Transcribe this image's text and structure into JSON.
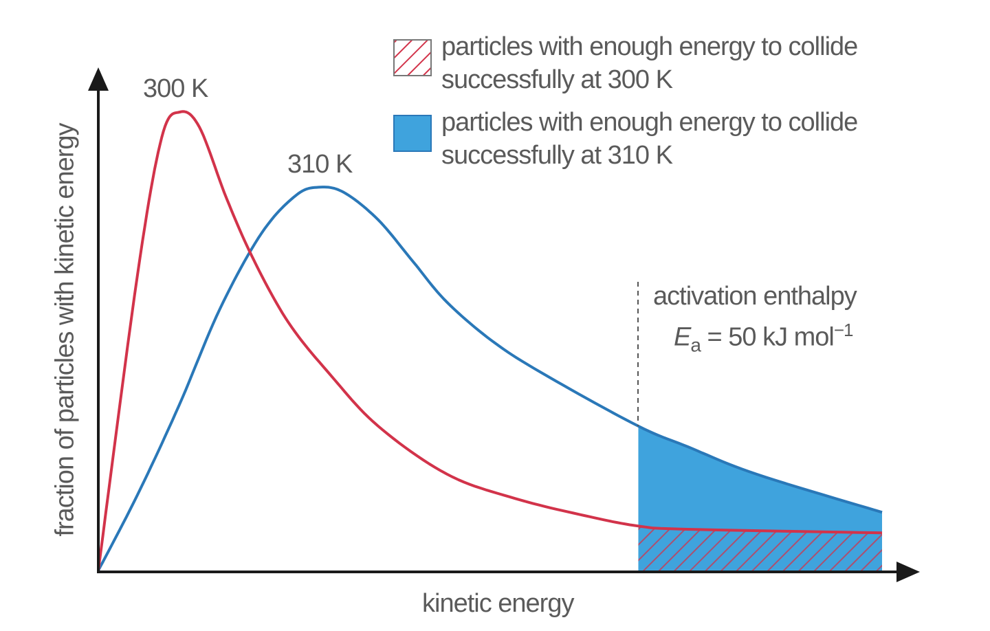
{
  "chart_data": {
    "type": "line",
    "title": "",
    "xlabel": "kinetic energy",
    "ylabel": "fraction of particles with kinetic energy",
    "xlim": [
      0,
      100
    ],
    "ylim": [
      0,
      100
    ],
    "grid": false,
    "ticks": "none",
    "legend_position": "top-right",
    "series": [
      {
        "name": "300 K",
        "color": "#d2334a",
        "points": [
          [
            0,
            0
          ],
          [
            5,
            64.5
          ],
          [
            8.1,
            94.5
          ],
          [
            10.4,
            100
          ],
          [
            12.9,
            96.7
          ],
          [
            16.4,
            81
          ],
          [
            19.9,
            67.5
          ],
          [
            24.3,
            54
          ],
          [
            29.6,
            42.7
          ],
          [
            35.7,
            31.5
          ],
          [
            44.5,
            21
          ],
          [
            53.2,
            15.7
          ],
          [
            62,
            12
          ],
          [
            68.9,
            9.7
          ],
          [
            75.2,
            9
          ],
          [
            100,
            8.2
          ]
        ]
      },
      {
        "name": "310 K",
        "color": "#2a78b8",
        "points": [
          [
            0,
            0
          ],
          [
            5,
            16.5
          ],
          [
            10.3,
            36
          ],
          [
            15.5,
            57
          ],
          [
            20.8,
            73.5
          ],
          [
            25.2,
            81.8
          ],
          [
            28.1,
            83.6
          ],
          [
            31.3,
            82.5
          ],
          [
            35.7,
            76.5
          ],
          [
            40.1,
            67.5
          ],
          [
            44.5,
            58.5
          ],
          [
            50.7,
            49.5
          ],
          [
            57.7,
            42
          ],
          [
            68.9,
            31.5
          ],
          [
            75.2,
            27
          ],
          [
            84,
            21
          ],
          [
            100,
            12.7
          ]
        ]
      }
    ],
    "activation": {
      "x": 68.9,
      "label_line1": "activation enthalpy",
      "symbol": "E",
      "subscript": "a",
      "value_text": " = 50 kJ mol",
      "superscript": "−1"
    },
    "legend": [
      {
        "line1": "particles with enough energy to collide",
        "line2": "successfully at 300 K",
        "style": "hatched",
        "color": "#d2334a"
      },
      {
        "line1": "particles with enough energy to collide",
        "line2": "successfully at 310 K",
        "style": "solid",
        "color": "#3fa3dd"
      }
    ],
    "fill_color": "#3fa3dd"
  }
}
